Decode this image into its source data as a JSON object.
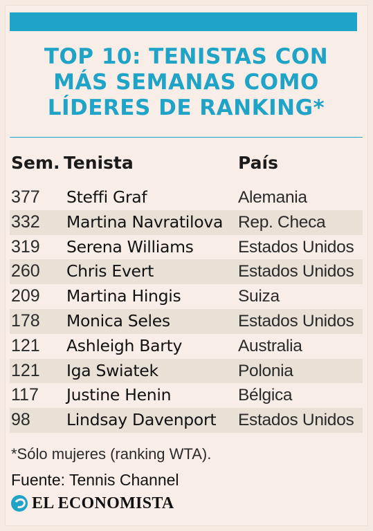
{
  "title": {
    "lines": [
      "TOP 10: TENISTAS CON",
      "MÁS SEMANAS COMO",
      "LÍDERES DE RANKING*"
    ]
  },
  "table": {
    "headers": {
      "weeks": "Sem.",
      "player": "Tenista",
      "country": "País"
    },
    "rows": [
      {
        "weeks": "377",
        "player": "Steffi Graf",
        "country": "Alemania"
      },
      {
        "weeks": "332",
        "player": "Martina Navratilova",
        "country": "Rep. Checa"
      },
      {
        "weeks": "319",
        "player": "Serena Williams",
        "country": "Estados Unidos"
      },
      {
        "weeks": "260",
        "player": "Chris Evert",
        "country": "Estados Unidos"
      },
      {
        "weeks": "209",
        "player": "Martina Hingis",
        "country": "Suiza"
      },
      {
        "weeks": "178",
        "player": "Monica Seles",
        "country": "Estados Unidos"
      },
      {
        "weeks": "121",
        "player": "Ashleigh Barty",
        "country": "Australia"
      },
      {
        "weeks": "121",
        "player": "Iga Swiatek",
        "country": "Polonia"
      },
      {
        "weeks": "117",
        "player": "Justine Henin",
        "country": "Bélgica"
      },
      {
        "weeks": "98",
        "player": "Lindsay Davenport",
        "country": "Estados Unidos"
      }
    ]
  },
  "footnote": "*Sólo mujeres (ranking WTA).",
  "source": "Fuente: Tennis Channel",
  "logo": {
    "text": "EL ECONOMISTA",
    "icon": "el-economista-logo-icon"
  },
  "colors": {
    "accent": "#1fa3c7",
    "background": "#f9eee7",
    "stripe": "#e9e0d6"
  }
}
